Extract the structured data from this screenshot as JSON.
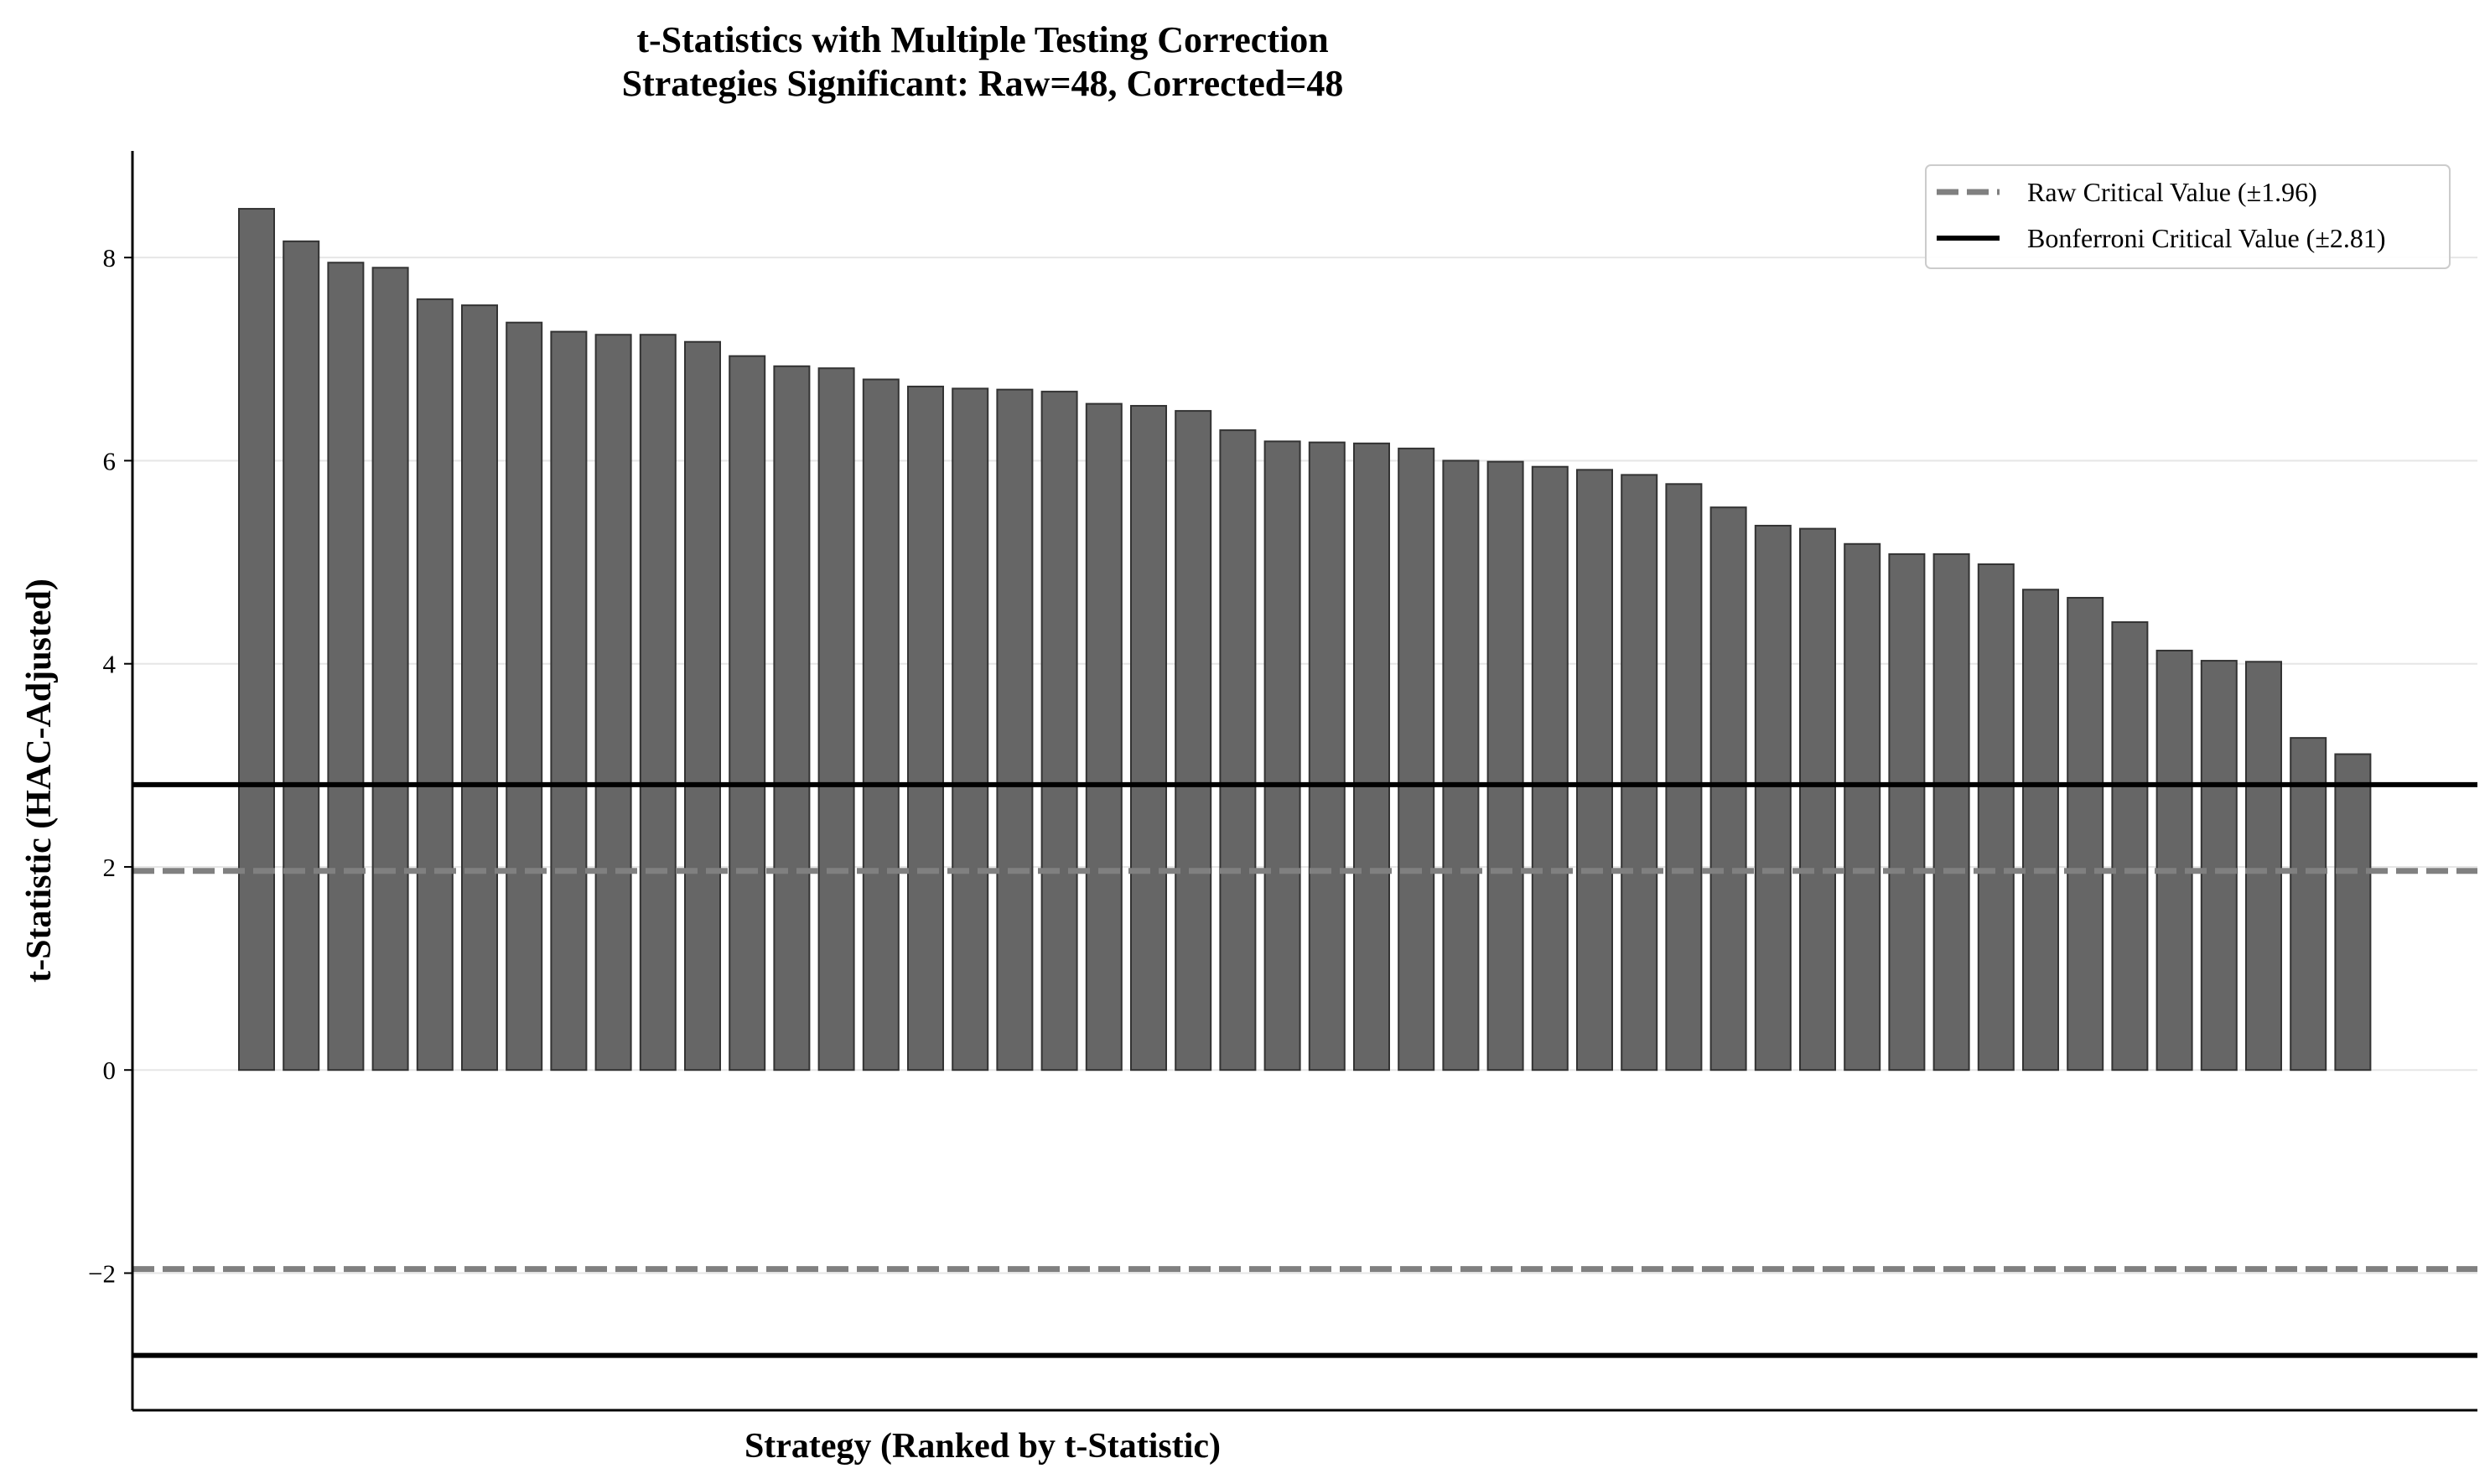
{
  "chart_data": {
    "type": "bar",
    "title": "t-Statistics with Multiple Testing Correction",
    "subtitle": "Strategies Significant: Raw=48, Corrected=48",
    "xlabel": "Strategy (Ranked by t-Statistic)",
    "ylabel": "t-Statistic (HAC-Adjusted)",
    "ylim": [
      -3.35,
      9.05
    ],
    "yticks": [
      -2,
      0,
      2,
      4,
      6,
      8
    ],
    "ytick_labels": [
      "−2",
      "0",
      "2",
      "4",
      "6",
      "8"
    ],
    "grid": "horizontal",
    "bar_color": "#666666",
    "values": [
      8.48,
      8.16,
      7.95,
      7.9,
      7.59,
      7.53,
      7.36,
      7.27,
      7.24,
      7.24,
      7.17,
      7.03,
      6.93,
      6.91,
      6.8,
      6.73,
      6.71,
      6.7,
      6.68,
      6.56,
      6.54,
      6.49,
      6.3,
      6.19,
      6.18,
      6.17,
      6.12,
      6.0,
      5.99,
      5.94,
      5.91,
      5.86,
      5.77,
      5.54,
      5.36,
      5.33,
      5.18,
      5.08,
      5.08,
      4.98,
      4.73,
      4.65,
      4.41,
      4.13,
      4.03,
      4.02,
      3.27,
      3.11
    ],
    "reference_lines": [
      {
        "name": "Raw Critical Value (±1.96)",
        "value": 1.96,
        "style": "dashed",
        "color": "#808080"
      },
      {
        "name": "Bonferroni Critical Value (±2.81)",
        "value": 2.81,
        "style": "solid",
        "color": "#000000"
      }
    ],
    "legend_position": "top-right"
  }
}
